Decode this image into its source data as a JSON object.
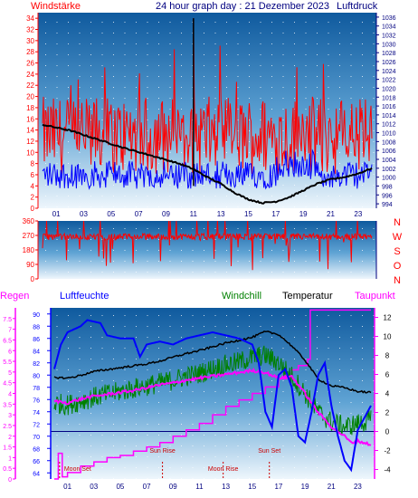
{
  "header": {
    "left": "Windstärke",
    "center": "24 hour graph day : 21 Dezember 2023",
    "right": "Luftdruck"
  },
  "colors": {
    "wind": "#ff0000",
    "gust_base": "#0000ff",
    "pressure": "#000000",
    "rain": "#ff00ff",
    "humidity": "#0000ff",
    "windchill": "#008000",
    "temperature": "#000000",
    "dewpoint": "#ff00ff",
    "label_left": "#ff0000",
    "label_blue": "#000080"
  },
  "chart_data": [
    {
      "type": "line",
      "id": "wind-pressure",
      "x_ticks": [
        "01",
        "03",
        "05",
        "07",
        "09",
        "11",
        "13",
        "15",
        "17",
        "19",
        "21",
        "23"
      ],
      "wind_axis": {
        "label": "Windstärke",
        "ticks": [
          "0",
          "2",
          "4",
          "6",
          "8",
          "10",
          "12",
          "14",
          "16",
          "18",
          "20",
          "22",
          "24",
          "26",
          "28",
          "30",
          "32",
          "34"
        ],
        "range": [
          0,
          35
        ]
      },
      "pressure_axis": {
        "label": "Luftdruck",
        "ticks": [
          "994",
          "996",
          "998",
          "1000",
          "1002",
          "1004",
          "1006",
          "1008",
          "1010",
          "1012",
          "1014",
          "1016",
          "1018",
          "1020",
          "1022",
          "1024",
          "1026",
          "1028",
          "1030",
          "1032",
          "1034",
          "1036"
        ],
        "range": [
          993,
          1037
        ]
      },
      "pressure_x": [
        0,
        2,
        4,
        6,
        8,
        10,
        11,
        12,
        13,
        14,
        15,
        16,
        17,
        18,
        19,
        20,
        21,
        22,
        23,
        24
      ],
      "pressure_y": [
        1011.8,
        1010.5,
        1008.5,
        1006.5,
        1004.8,
        1003,
        1001.8,
        1000,
        998.5,
        996.5,
        995,
        994.2,
        994.5,
        995.5,
        997,
        998.5,
        999.5,
        1000,
        1000.8,
        1002
      ],
      "wind_gust_mean": 13,
      "wind_avg_mean": 6,
      "spike_hour": 11,
      "spike_value": 34
    },
    {
      "type": "line",
      "id": "wind-direction",
      "y_ticks": [
        "0",
        "90",
        "180",
        "270",
        "360"
      ],
      "range": [
        0,
        360
      ],
      "right_labels": [
        "N",
        "W",
        "S",
        "O",
        "N"
      ],
      "mean_direction": 262
    },
    {
      "type": "line",
      "id": "temp-hum",
      "x_ticks": [
        "01",
        "03",
        "05",
        "07",
        "09",
        "11",
        "13",
        "15",
        "17",
        "19",
        "21",
        "23"
      ],
      "legend": {
        "rain": "Regen",
        "humidity": "Luftfeuchte",
        "windchill": "Windchill",
        "temperature": "Temperatur",
        "dewpoint": "Taupunkt"
      },
      "rain_ticks": [
        "0",
        "0.5",
        "1",
        "1.5",
        "2",
        "2.5",
        "3",
        "3.5",
        "4",
        "4.5",
        "5",
        "5.5",
        "6",
        "6.5",
        "7",
        "7.5"
      ],
      "rain_range": [
        0,
        8
      ],
      "humidity_ticks": [
        "64",
        "66",
        "68",
        "70",
        "72",
        "74",
        "76",
        "78",
        "80",
        "82",
        "84",
        "86",
        "88",
        "90"
      ],
      "humidity_range": [
        63,
        91
      ],
      "temp_ticks": [
        "-4",
        "-2",
        "0",
        "2",
        "4",
        "6",
        "8",
        "10",
        "12"
      ],
      "temp_range": [
        -5,
        13
      ],
      "temperature_x": [
        0,
        1,
        2,
        3,
        4,
        5,
        6,
        7,
        8,
        9,
        10,
        11,
        12,
        13,
        14,
        15,
        16,
        17,
        18,
        19,
        20,
        21,
        22,
        23,
        24
      ],
      "temperature_y": [
        5.7,
        5.6,
        5.9,
        6.3,
        6.5,
        6.7,
        6.9,
        7.1,
        7.4,
        7.8,
        8.2,
        8.5,
        8.9,
        9.3,
        9.6,
        9.9,
        10.5,
        10.2,
        9.0,
        7.5,
        5.5,
        4.8,
        4.6,
        4.2,
        4.1
      ],
      "humidity_x": [
        0,
        0.5,
        1,
        2,
        2.5,
        3.5,
        4,
        5,
        6,
        6.5,
        7,
        8,
        9,
        10,
        11,
        12,
        13,
        14,
        15,
        15.5,
        16,
        16.5,
        17,
        17.5,
        18,
        18.5,
        19,
        19.5,
        20,
        20.5,
        21,
        21.5,
        22,
        22.5,
        23,
        23.5,
        24
      ],
      "humidity_y": [
        81,
        85,
        87,
        88,
        89,
        88.5,
        86.5,
        86,
        86,
        83,
        85,
        85.5,
        85,
        86,
        86.5,
        87,
        86.5,
        86,
        85,
        82,
        74,
        71.5,
        80,
        81,
        78,
        70,
        69,
        74,
        80,
        82,
        75,
        70,
        66,
        64.5,
        71,
        73,
        75
      ],
      "dewpoint_x": [
        0,
        1,
        2,
        3,
        4,
        5,
        6,
        7,
        8,
        9,
        10,
        11,
        12,
        13,
        14,
        15,
        16,
        17,
        18,
        19,
        20,
        21,
        22,
        22.5,
        23,
        24
      ],
      "dewpoint_y": [
        3.2,
        3.0,
        3.4,
        3.7,
        3.9,
        4.1,
        4.3,
        4.6,
        4.9,
        5.1,
        5.4,
        5.6,
        5.8,
        6.0,
        6.2,
        6.4,
        6.2,
        5.6,
        5.8,
        4.0,
        2.0,
        0.5,
        -0.5,
        -1.2,
        -1.0,
        -1.4
      ],
      "windchill_x": [
        0,
        1,
        2,
        3,
        4,
        5,
        6,
        7,
        8,
        9,
        10,
        11,
        12,
        13,
        14,
        15,
        16,
        17,
        18,
        19,
        20,
        21,
        22,
        23,
        24
      ],
      "windchill_y": [
        3.0,
        2.8,
        3.2,
        3.6,
        3.9,
        4.2,
        4.5,
        4.8,
        5.1,
        5.4,
        5.8,
        6.1,
        6.6,
        7.0,
        7.3,
        7.8,
        8.0,
        7.2,
        5.8,
        4.0,
        2.0,
        1.0,
        0.5,
        0.8,
        1.2
      ],
      "rain_x": [
        0,
        0.3,
        0.6,
        1,
        2,
        3,
        4,
        5,
        6,
        7,
        8,
        9,
        10,
        11,
        12,
        13,
        14,
        15,
        16,
        17,
        18,
        18.5,
        19,
        19.2,
        19.4,
        20,
        21,
        22,
        23,
        24
      ],
      "rain_y": [
        0,
        1.2,
        0.1,
        0.3,
        0.6,
        0.8,
        1.0,
        1.1,
        1.3,
        1.5,
        1.7,
        2.0,
        2.3,
        2.6,
        3.0,
        3.4,
        3.7,
        4.0,
        4.3,
        4.7,
        5.1,
        5.3,
        5.3,
        5.6,
        7.9,
        7.9,
        7.9,
        7.9,
        7.9,
        7.9
      ],
      "markers": [
        {
          "label": "Moon Set",
          "hour": 0.4,
          "row": "bottom"
        },
        {
          "label": "Sun Rise",
          "hour": 8.2,
          "row": "top"
        },
        {
          "label": "Moon Rise",
          "hour": 12.8,
          "row": "bottom"
        },
        {
          "label": "Sun Set",
          "hour": 16.3,
          "row": "top"
        }
      ],
      "zero_line_value": 0
    }
  ]
}
